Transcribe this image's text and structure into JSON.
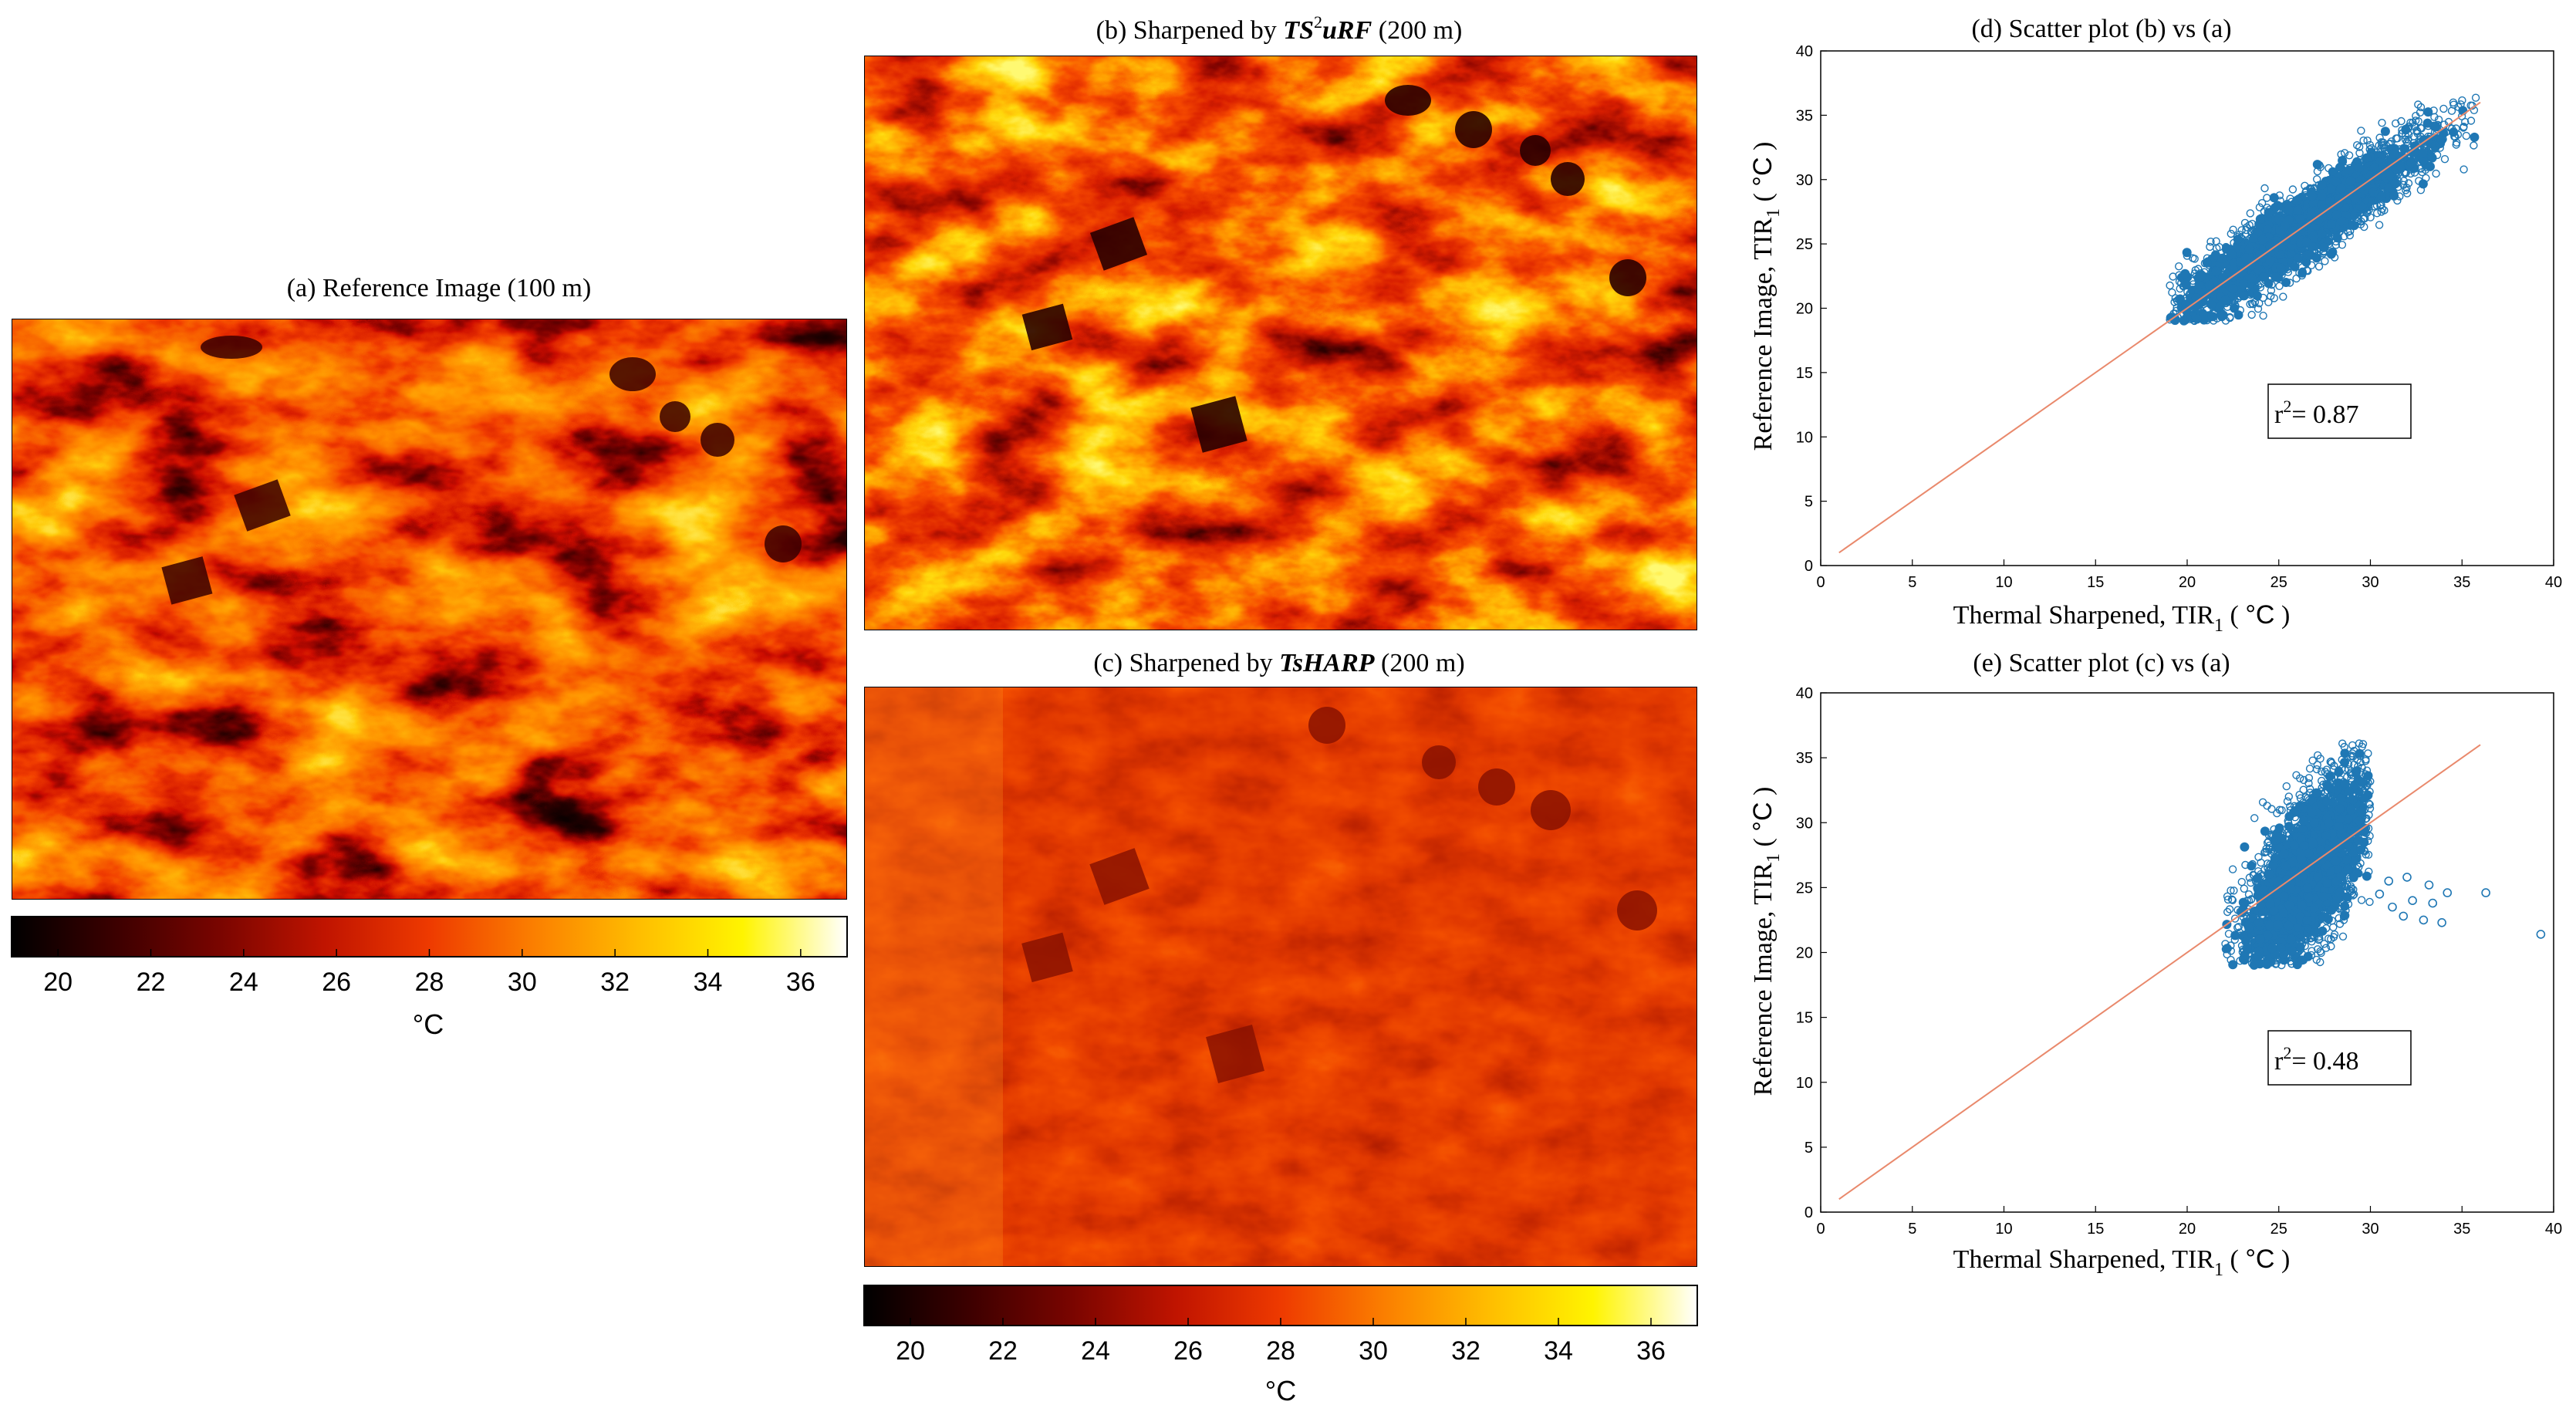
{
  "colors": {
    "scatter": "#1f77b4",
    "fitline": "#e9896c",
    "colormap": [
      "#000000",
      "#3c0000",
      "#7a0500",
      "#c01400",
      "#ee3a00",
      "#fb7f00",
      "#ffbd00",
      "#fff400",
      "#ffffff"
    ]
  },
  "panels": {
    "a": {
      "title": "(a) Reference Image (100 m)"
    },
    "b": {
      "title_prefix": "(b) Sharpened by ",
      "title_method": "TS",
      "title_sup": "2",
      "title_method_rest": "uRF",
      "title_suffix": " (200 m)"
    },
    "c": {
      "title_prefix": "(c) Sharpened by ",
      "title_method": "TsHARP",
      "title_suffix": " (200 m)"
    }
  },
  "colorbars": [
    {
      "ticks": [
        "20",
        "22",
        "24",
        "26",
        "28",
        "30",
        "32",
        "34",
        "36"
      ],
      "unit": "°C",
      "range": [
        19,
        37
      ]
    },
    {
      "ticks": [
        "20",
        "22",
        "24",
        "26",
        "28",
        "30",
        "32",
        "34",
        "36"
      ],
      "unit": "°C",
      "range": [
        19,
        37
      ]
    }
  ],
  "chart_data": [
    {
      "type": "scatter",
      "title": "(d) Scatter plot (b) vs (a)",
      "xlabel": "Thermal Sharpened, TIR",
      "xlabel_sub": "1",
      "xlabel_unit": "°C",
      "ylabel": "Reference Image, TIR",
      "ylabel_sub": "1",
      "ylabel_unit": "°C",
      "xlim": [
        0,
        40
      ],
      "ylim": [
        0,
        40
      ],
      "xticks": [
        "0",
        "5",
        "10",
        "15",
        "20",
        "25",
        "30",
        "35",
        "40"
      ],
      "yticks": [
        "0",
        "5",
        "10",
        "15",
        "20",
        "25",
        "30",
        "35",
        "40"
      ],
      "r2_label": "r",
      "r2_sup": "2",
      "r2_value": "= 0.87",
      "fit_line": {
        "x": [
          1,
          36
        ],
        "y": [
          1,
          36
        ]
      },
      "cloud": {
        "x_range": [
          19,
          36
        ],
        "y_range": [
          19,
          36.5
        ],
        "center": [
          26,
          26
        ],
        "correlation": 0.93
      }
    },
    {
      "type": "scatter",
      "title": "(e) Scatter plot (c) vs (a)",
      "xlabel": "Thermal Sharpened, TIR",
      "xlabel_sub": "1",
      "xlabel_unit": "°C",
      "ylabel": "Reference Image, TIR",
      "ylabel_sub": "1",
      "ylabel_unit": "°C",
      "xlim": [
        0,
        40
      ],
      "ylim": [
        0,
        40
      ],
      "xticks": [
        "0",
        "5",
        "10",
        "15",
        "20",
        "25",
        "30",
        "35",
        "40"
      ],
      "yticks": [
        "0",
        "5",
        "10",
        "15",
        "20",
        "25",
        "30",
        "35",
        "40"
      ],
      "r2_label": "r",
      "r2_sup": "2",
      "r2_value": "= 0.48",
      "fit_line": {
        "x": [
          1,
          36
        ],
        "y": [
          1,
          36
        ]
      },
      "cloud": {
        "x_range": [
          22,
          30
        ],
        "y_range": [
          19,
          36.5
        ],
        "center": [
          26.5,
          26
        ],
        "correlation": 0.69
      },
      "outliers": [
        {
          "x": 30.5,
          "y": 24.5
        },
        {
          "x": 31.2,
          "y": 23.5
        },
        {
          "x": 31.8,
          "y": 22.8
        },
        {
          "x": 32.3,
          "y": 24.0
        },
        {
          "x": 32.9,
          "y": 22.5
        },
        {
          "x": 33.4,
          "y": 23.8
        },
        {
          "x": 33.9,
          "y": 22.3
        },
        {
          "x": 34.2,
          "y": 24.6
        },
        {
          "x": 31.0,
          "y": 25.5
        },
        {
          "x": 32.0,
          "y": 25.8
        },
        {
          "x": 33.2,
          "y": 25.2
        },
        {
          "x": 36.3,
          "y": 24.6
        },
        {
          "x": 39.3,
          "y": 21.4
        }
      ]
    }
  ]
}
